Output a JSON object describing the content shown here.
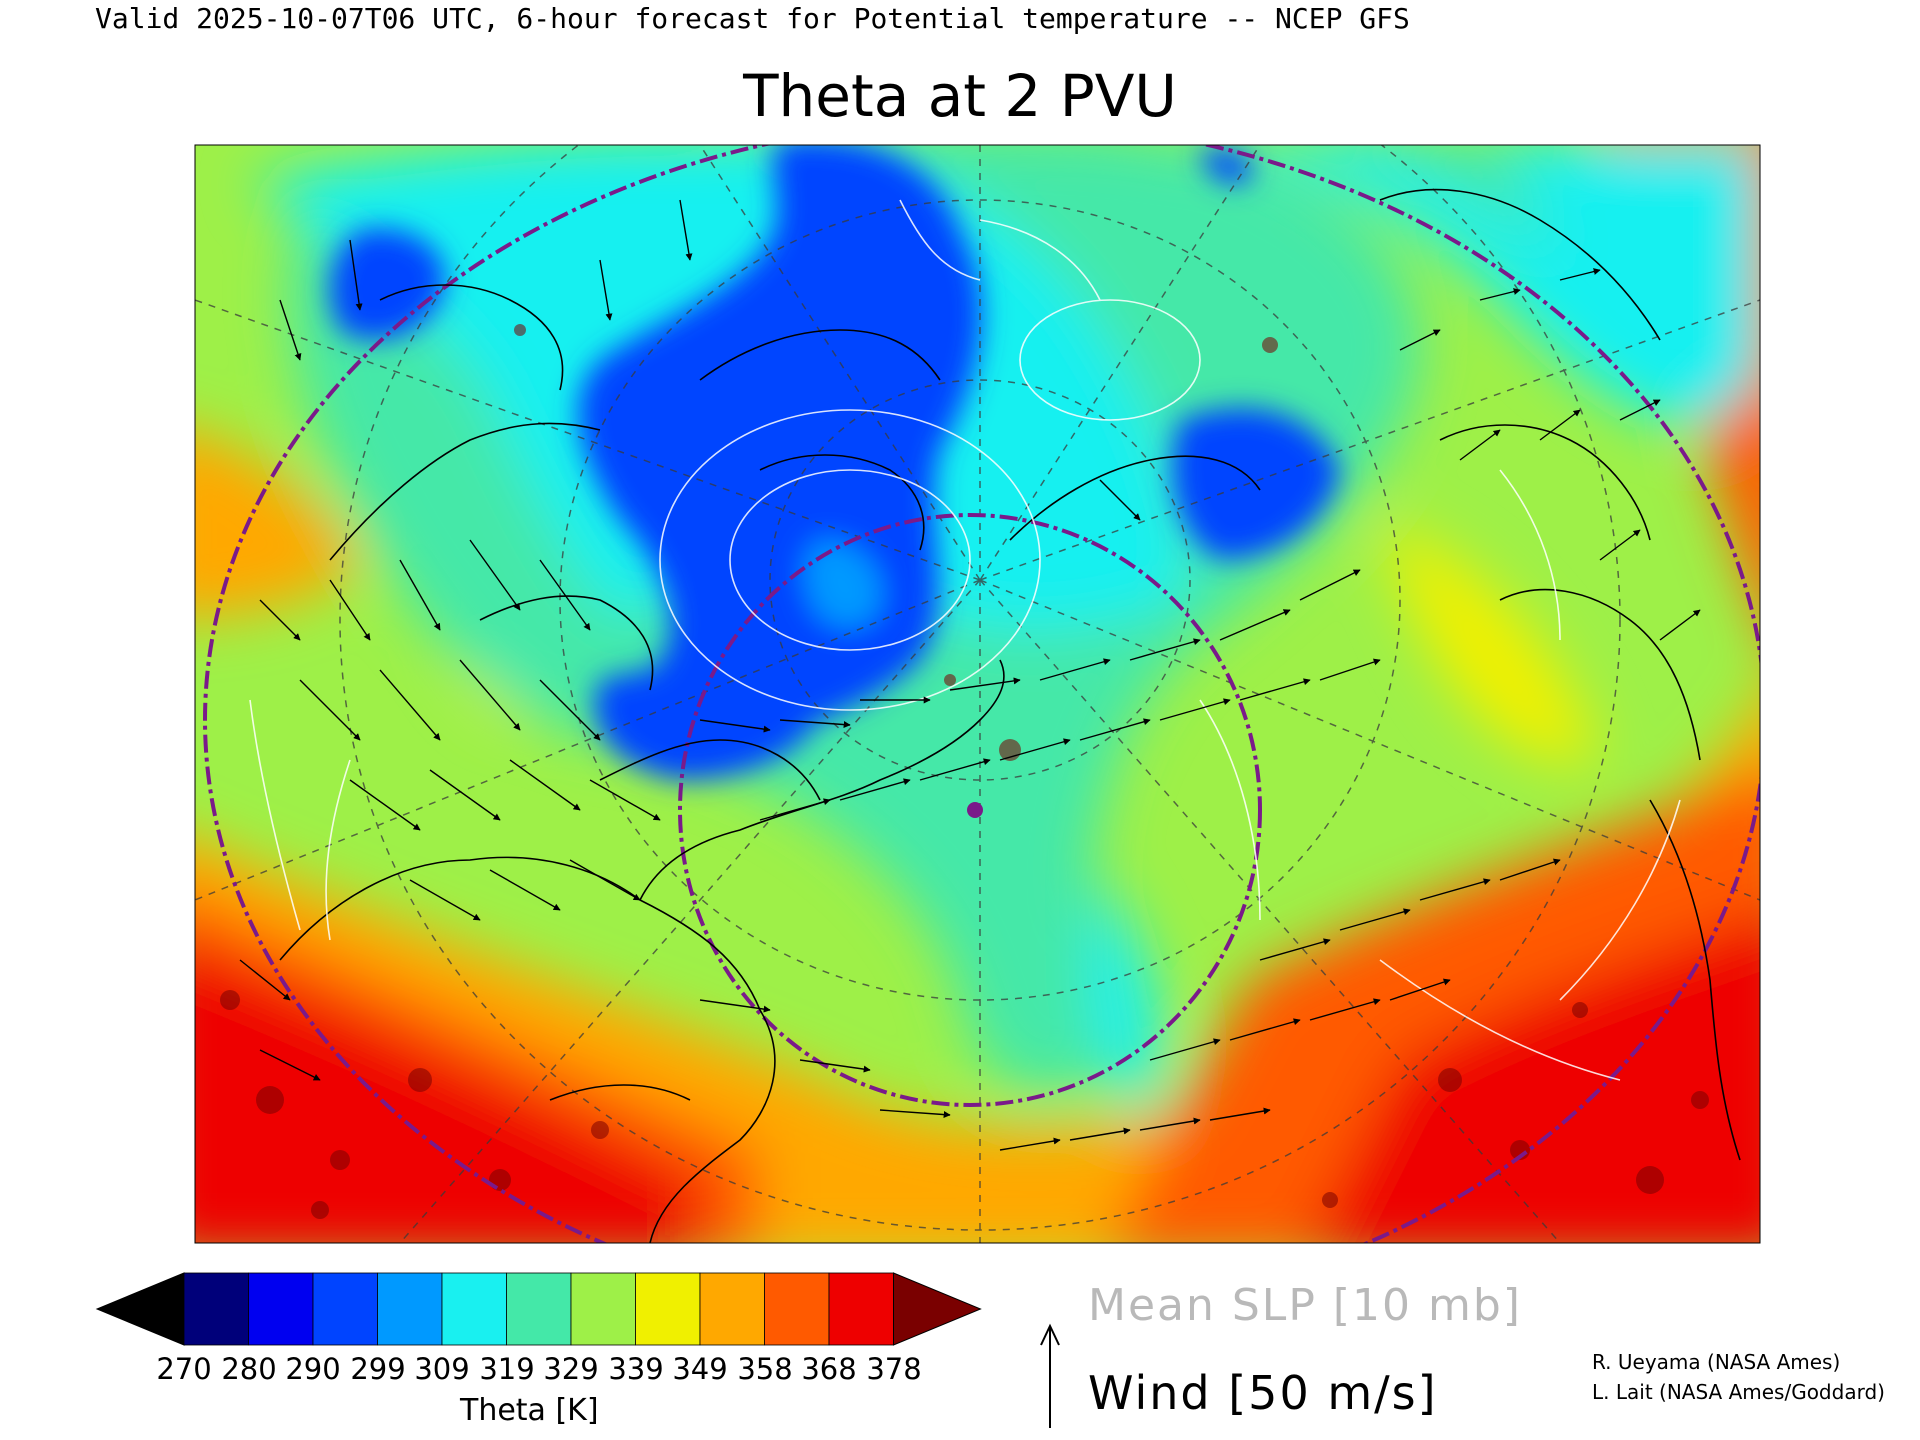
{
  "header": "Valid 2025-10-07T06 UTC, 6-hour forecast for Potential temperature -- NCEP GFS",
  "title": "Theta at 2 PVU",
  "colorbar": {
    "title": "Theta [K]",
    "ticks": [
      "270",
      "280",
      "290",
      "299",
      "309",
      "319",
      "329",
      "339",
      "349",
      "358",
      "368",
      "378"
    ],
    "colors": [
      "#000000",
      "#00007a",
      "#0000f0",
      "#0044ff",
      "#0099ff",
      "#19f0f0",
      "#44e8a8",
      "#9ef048",
      "#f0f000",
      "#ffa800",
      "#ff5a00",
      "#ee0000",
      "#7a0000"
    ]
  },
  "legend": {
    "slp": "Mean SLP [10 mb]",
    "wind": "Wind [50 m/s]"
  },
  "credits": [
    "R. Ueyama (NASA Ames)",
    "L. Lait (NASA Ames/Goddard)"
  ],
  "map_colors": {
    "low_theta": "#0044ff",
    "mid_theta": "#19f0f0",
    "high_theta": "#ee0000",
    "contour": "#ffffff",
    "circle": "#7a1a8a"
  }
}
